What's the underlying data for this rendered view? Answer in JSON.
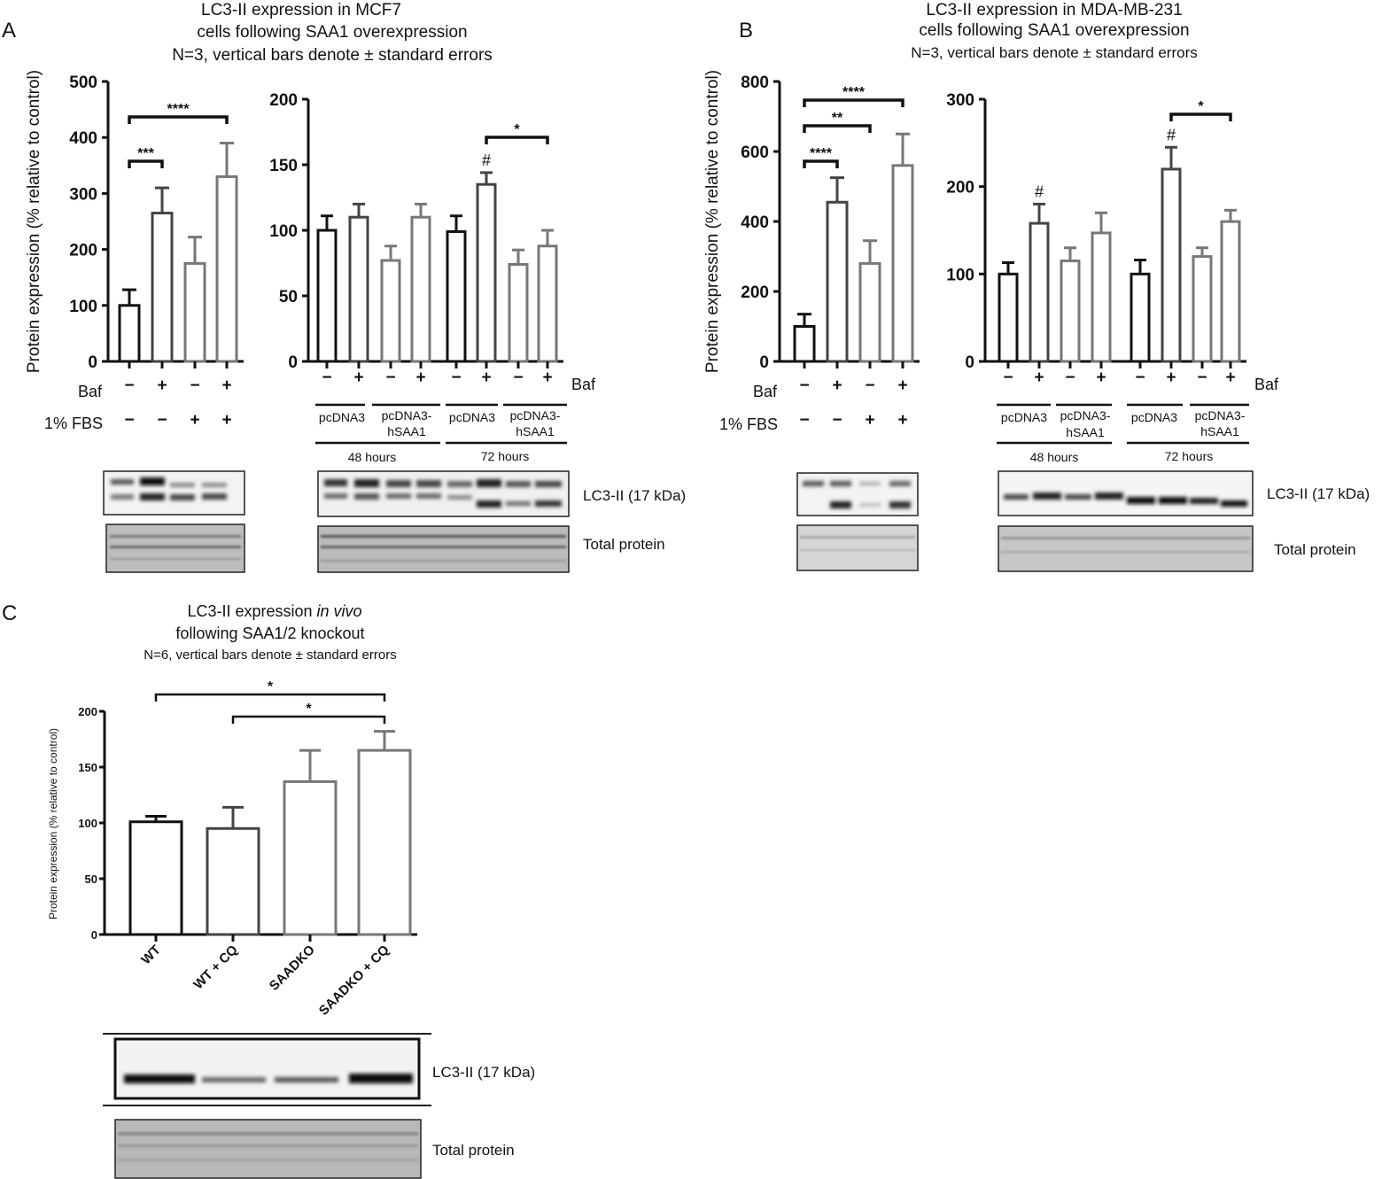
{
  "panels": {
    "A": "A",
    "B": "B",
    "C": "C"
  },
  "titles": {
    "A": [
      "LC3-II expression in MCF7",
      "cells following SAA1 overexpression",
      "N=3, vertical bars denote ± standard errors"
    ],
    "B": [
      "LC3-II expression in MDA-MB-231",
      "cells following SAA1 overexpression",
      "N=3, vertical bars denote ± standard errors"
    ],
    "C": [
      "LC3-II expression ",
      "in vivo",
      "following SAA1/2 knockout",
      "N=6, vertical bars denote ± standard errors"
    ]
  },
  "ylabel": "Protein expression (% relative to control)",
  "row_labels": {
    "baf": "Baf",
    "fbs": "1% FBS"
  },
  "signs": {
    "minus": "−",
    "plus": "+"
  },
  "group_labels": {
    "pc": "pcDNA3",
    "hs1": "pcDNA3-",
    "hs2": "hSAA1",
    "h48": "48 hours",
    "h72": "72 hours"
  },
  "blot_labels": {
    "lc3": "LC3-II (17 kDa)",
    "total": "Total protein"
  },
  "colors": {
    "black": "#111111",
    "gray": "#777777"
  },
  "chart_data": [
    {
      "id": "A-left",
      "type": "bar",
      "ylim": [
        0,
        500
      ],
      "yticks": [
        0,
        100,
        200,
        300,
        400,
        500
      ],
      "ylabel": "Protein expression (% relative to control)",
      "categories": [
        "Baf− FBS−",
        "Baf+ FBS−",
        "Baf− FBS+",
        "Baf+ FBS+"
      ],
      "values": [
        100,
        265,
        175,
        330
      ],
      "errors": [
        28,
        45,
        47,
        60
      ],
      "colors": [
        "#111111",
        "#444444",
        "#777777",
        "#777777"
      ],
      "baf": [
        "−",
        "+",
        "−",
        "+"
      ],
      "fbs": [
        "−",
        "−",
        "+",
        "+"
      ],
      "brackets": [
        {
          "from": 0,
          "to": 1,
          "label": "***"
        },
        {
          "from": 0,
          "to": 3,
          "label": "****"
        }
      ]
    },
    {
      "id": "A-right",
      "type": "bar",
      "ylim": [
        0,
        200
      ],
      "yticks": [
        0,
        50,
        100,
        150,
        200
      ],
      "categories": [
        "48h pcDNA3 −",
        "48h pcDNA3 +",
        "48h hSAA1 −",
        "48h hSAA1 +",
        "72h pcDNA3 −",
        "72h pcDNA3 +",
        "72h hSAA1 −",
        "72h hSAA1 +"
      ],
      "values": [
        100,
        110,
        77,
        110,
        99,
        135,
        74,
        88
      ],
      "errors": [
        11,
        10,
        11,
        10,
        12,
        9,
        11,
        12
      ],
      "colors": [
        "#111111",
        "#444444",
        "#777777",
        "#777777",
        "#111111",
        "#444444",
        "#777777",
        "#777777"
      ],
      "baf": [
        "−",
        "+",
        "−",
        "+",
        "−",
        "+",
        "−",
        "+"
      ],
      "hash": [
        5
      ],
      "brackets": [
        {
          "from": 5,
          "to": 7,
          "label": "*"
        }
      ]
    },
    {
      "id": "B-left",
      "type": "bar",
      "ylim": [
        0,
        800
      ],
      "yticks": [
        0,
        200,
        400,
        600,
        800
      ],
      "ylabel": "Protein expression (% relative to control)",
      "categories": [
        "Baf− FBS−",
        "Baf+ FBS−",
        "Baf− FBS+",
        "Baf+ FBS+"
      ],
      "values": [
        100,
        455,
        280,
        560
      ],
      "errors": [
        35,
        70,
        65,
        90
      ],
      "colors": [
        "#111111",
        "#444444",
        "#777777",
        "#777777"
      ],
      "baf": [
        "−",
        "+",
        "−",
        "+"
      ],
      "fbs": [
        "−",
        "−",
        "+",
        "+"
      ],
      "brackets": [
        {
          "from": 0,
          "to": 1,
          "label": "****"
        },
        {
          "from": 0,
          "to": 2,
          "label": "**"
        },
        {
          "from": 0,
          "to": 3,
          "label": "****"
        }
      ]
    },
    {
      "id": "B-right",
      "type": "bar",
      "ylim": [
        0,
        300
      ],
      "yticks": [
        0,
        100,
        200,
        300
      ],
      "categories": [
        "48h pcDNA3 −",
        "48h pcDNA3 +",
        "48h hSAA1 −",
        "48h hSAA1 +",
        "72h pcDNA3 −",
        "72h pcDNA3 +",
        "72h hSAA1 −",
        "72h hSAA1 +"
      ],
      "values": [
        100,
        158,
        115,
        147,
        100,
        220,
        120,
        160
      ],
      "errors": [
        13,
        22,
        15,
        23,
        16,
        25,
        10,
        13
      ],
      "colors": [
        "#111111",
        "#444444",
        "#777777",
        "#777777",
        "#111111",
        "#444444",
        "#777777",
        "#777777"
      ],
      "baf": [
        "−",
        "+",
        "−",
        "+",
        "−",
        "+",
        "−",
        "+"
      ],
      "hash": [
        1,
        5
      ],
      "brackets": [
        {
          "from": 5,
          "to": 7,
          "label": "*"
        }
      ]
    },
    {
      "id": "C",
      "type": "bar",
      "ylim": [
        0,
        200
      ],
      "yticks": [
        0,
        50,
        100,
        150,
        200
      ],
      "ylabel": "Protein expression (% relative to control)",
      "categories": [
        "WT",
        "WT + CQ",
        "SAADKO",
        "SAADKO + CQ"
      ],
      "values": [
        101,
        95,
        137,
        165
      ],
      "errors": [
        5,
        19,
        28,
        17
      ],
      "colors": [
        "#111111",
        "#444444",
        "#777777",
        "#777777"
      ],
      "brackets": [
        {
          "from": 1,
          "to": 3,
          "label": "*"
        },
        {
          "from": 0,
          "to": 3,
          "label": "*"
        }
      ]
    }
  ]
}
